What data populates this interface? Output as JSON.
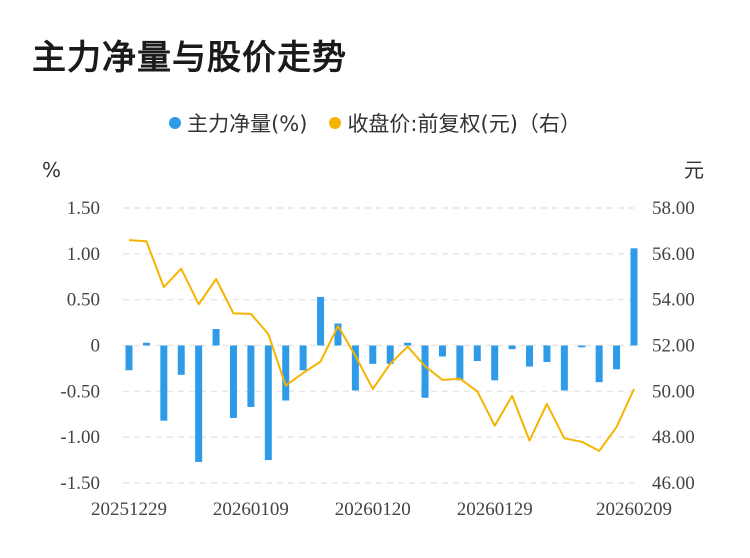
{
  "title": "主力净量与股价走势",
  "chart_data": {
    "type": "bar+line",
    "series": [
      {
        "name": "主力净量(%)",
        "type": "bar",
        "axis": "left",
        "color": "#2f9be8",
        "values": [
          -0.27,
          0.03,
          -0.82,
          -0.32,
          -1.27,
          0.18,
          -0.79,
          -0.67,
          -1.25,
          -0.6,
          -0.27,
          0.53,
          0.24,
          -0.49,
          -0.2,
          -0.2,
          0.03,
          -0.57,
          -0.12,
          -0.38,
          -0.17,
          -0.38,
          -0.04,
          -0.23,
          -0.18,
          -0.49,
          -0.02,
          -0.4,
          -0.26,
          1.06
        ]
      },
      {
        "name": "收盘价:前复权(元)（右）",
        "type": "line",
        "axis": "right",
        "color": "#f4b400",
        "values": [
          56.6,
          56.55,
          54.55,
          55.35,
          53.8,
          54.9,
          53.4,
          53.38,
          52.5,
          50.25,
          50.8,
          51.3,
          52.85,
          51.55,
          50.1,
          51.2,
          51.95,
          51.1,
          50.5,
          50.55,
          50.0,
          48.5,
          49.8,
          47.85,
          49.45,
          47.95,
          47.8,
          47.4,
          48.45,
          50.1
        ]
      }
    ],
    "x_labels": [
      "20251229",
      "20260109",
      "20260120",
      "20260129",
      "20260209"
    ],
    "x_label_index": [
      0,
      7,
      14,
      21,
      29
    ],
    "y_left": {
      "unit": "%",
      "min": -1.5,
      "max": 1.5,
      "ticks": [
        "1.50",
        "1.00",
        "0.50",
        "0",
        "-0.50",
        "-1.00",
        "-1.50"
      ]
    },
    "y_right": {
      "unit": "元",
      "min": 46,
      "max": 58,
      "ticks": [
        "58.00",
        "56.00",
        "54.00",
        "52.00",
        "50.00",
        "48.00",
        "46.00"
      ]
    },
    "grid": true,
    "legend_position": "top-center"
  }
}
